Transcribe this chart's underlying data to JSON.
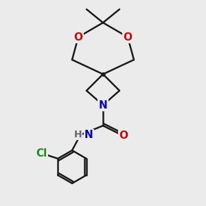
{
  "background_color": "#ebebeb",
  "bond_color": "#1a1a1a",
  "bond_width": 1.8,
  "atom_colors": {
    "O": "#dd0000",
    "N": "#0000cc",
    "Cl": "#228822",
    "C": "#1a1a1a"
  },
  "font_size_atom": 11,
  "fig_size": [
    3.0,
    3.0
  ],
  "dpi": 100
}
